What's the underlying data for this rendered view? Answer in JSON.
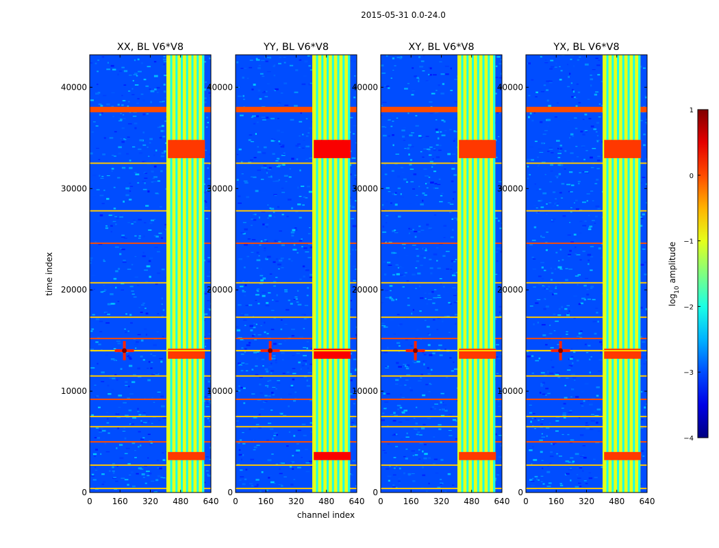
{
  "figure": {
    "suptitle": "2015-05-31 0.0-24.0"
  },
  "chart_data": {
    "type": "heatmap",
    "suptitle": "2015-05-31 0.0-24.0",
    "panels": [
      {
        "title": "XX, BL V6*V8"
      },
      {
        "title": "YY, BL V6*V8"
      },
      {
        "title": "XY, BL V6*V8"
      },
      {
        "title": "YX, BL V6*V8"
      }
    ],
    "xlabel": "channel index",
    "ylabel": "time index",
    "xlim": [
      0,
      640
    ],
    "ylim": [
      0,
      43200
    ],
    "xticks": [
      0,
      160,
      320,
      480,
      640
    ],
    "yticks": [
      0,
      10000,
      20000,
      30000,
      40000
    ],
    "colorbar": {
      "label_base": "log",
      "label_sub": "10",
      "label_rest": " amplitude",
      "range": [
        -4,
        1
      ],
      "ticks": [
        1,
        0,
        -1,
        -2,
        -3,
        -4
      ],
      "tick_labels": [
        "1",
        "0",
        "−1",
        "−2",
        "−3",
        "−4"
      ],
      "colormap": "jet"
    },
    "features": {
      "band_channels": [
        405,
        605
      ],
      "band_level": -1,
      "background_level": -3,
      "peak_source": {
        "channel": 183,
        "time": 14000,
        "level": 1
      },
      "bright_rows_time": [
        37800,
        32500,
        27800,
        24600,
        20700,
        17300,
        15200,
        14000,
        11500,
        9200,
        7500,
        6500,
        5000,
        2700,
        400
      ],
      "strong_patches_time": [
        [
          33000,
          34800
        ],
        [
          13200,
          14200
        ],
        [
          3200,
          4000
        ]
      ]
    }
  }
}
